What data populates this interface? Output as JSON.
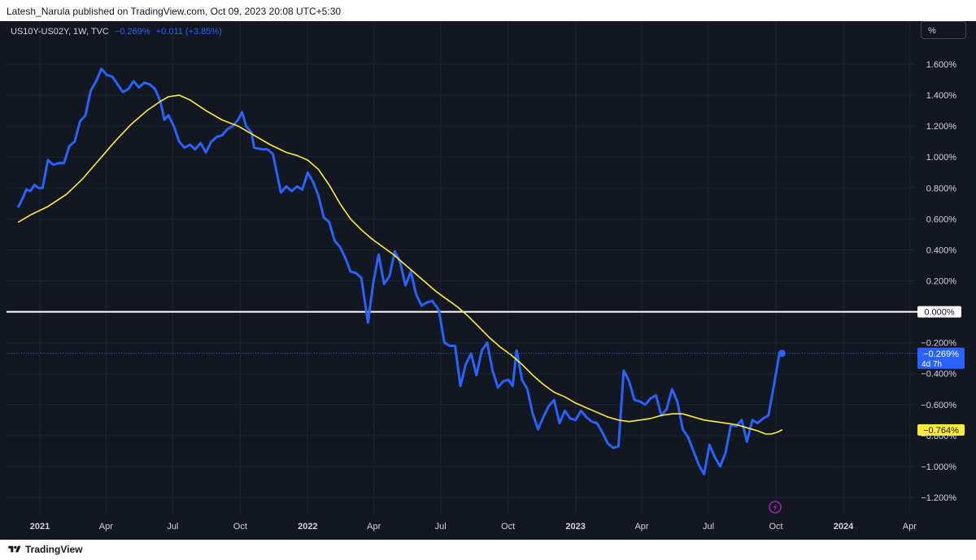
{
  "header": {
    "published_text": "Latesh_Narula published on TradingView.com, Oct 09, 2023 20:08 UTC+5:30"
  },
  "legend": {
    "symbol": "US10Y-US02Y, 1W, TVC",
    "last_value": "−0.269%",
    "change": "+0.011 (+3.85%)"
  },
  "scale_button": {
    "label": "%"
  },
  "footer": {
    "brand": "TradingView"
  },
  "colors": {
    "background": "#131722",
    "price_line": "#2962ff",
    "ma_line": "#ffeb3b",
    "zero_line": "#ffffff",
    "grid": "#1f2433"
  },
  "chart_data": {
    "type": "line",
    "title": "US10Y-US02Y, 1W, TVC",
    "ylim": [
      -1.3,
      1.75
    ],
    "y_unit": "%",
    "y_ticks": [
      1.6,
      1.4,
      1.2,
      1.0,
      0.8,
      0.6,
      0.4,
      0.2,
      -0.2,
      -0.4,
      -0.6,
      -0.8,
      -1.0,
      -1.2
    ],
    "y_tick_labels": [
      "1.600%",
      "1.400%",
      "1.200%",
      "1.000%",
      "0.800%",
      "0.600%",
      "0.400%",
      "0.200%",
      "−0.200%",
      "−0.400%",
      "−0.600%",
      "−0.800%",
      "−1.000%",
      "−1.200%"
    ],
    "x_ticks": [
      {
        "label": "2021",
        "t": 2021.0,
        "bold": true
      },
      {
        "label": "Apr",
        "t": 2021.247,
        "bold": false
      },
      {
        "label": "Jul",
        "t": 2021.496,
        "bold": false
      },
      {
        "label": "Oct",
        "t": 2021.748,
        "bold": false
      },
      {
        "label": "2022",
        "t": 2022.0,
        "bold": true
      },
      {
        "label": "Apr",
        "t": 2022.247,
        "bold": false
      },
      {
        "label": "Jul",
        "t": 2022.496,
        "bold": false
      },
      {
        "label": "Oct",
        "t": 2022.748,
        "bold": false
      },
      {
        "label": "2023",
        "t": 2023.0,
        "bold": true
      },
      {
        "label": "Apr",
        "t": 2023.247,
        "bold": false
      },
      {
        "label": "Jul",
        "t": 2023.496,
        "bold": false
      },
      {
        "label": "Oct",
        "t": 2023.748,
        "bold": false
      },
      {
        "label": "2024",
        "t": 2024.0,
        "bold": true
      },
      {
        "label": "Apr",
        "t": 2024.247,
        "bold": false
      }
    ],
    "xlim": [
      2020.92,
      2024.3
    ],
    "series": [
      {
        "name": "US10Y-US02Y",
        "color": "#2962ff",
        "points": [
          [
            2020.92,
            0.68
          ],
          [
            2020.935,
            0.73
          ],
          [
            2020.95,
            0.79
          ],
          [
            2020.965,
            0.78
          ],
          [
            2020.98,
            0.82
          ],
          [
            2020.995,
            0.8
          ],
          [
            2021.01,
            0.8
          ],
          [
            2021.03,
            0.98
          ],
          [
            2021.05,
            0.95
          ],
          [
            2021.07,
            0.96
          ],
          [
            2021.09,
            0.96
          ],
          [
            2021.11,
            1.07
          ],
          [
            2021.13,
            1.1
          ],
          [
            2021.15,
            1.23
          ],
          [
            2021.17,
            1.27
          ],
          [
            2021.19,
            1.43
          ],
          [
            2021.21,
            1.49
          ],
          [
            2021.23,
            1.57
          ],
          [
            2021.25,
            1.53
          ],
          [
            2021.27,
            1.52
          ],
          [
            2021.29,
            1.47
          ],
          [
            2021.31,
            1.42
          ],
          [
            2021.33,
            1.44
          ],
          [
            2021.35,
            1.49
          ],
          [
            2021.37,
            1.45
          ],
          [
            2021.39,
            1.48
          ],
          [
            2021.41,
            1.47
          ],
          [
            2021.43,
            1.44
          ],
          [
            2021.45,
            1.36
          ],
          [
            2021.465,
            1.24
          ],
          [
            2021.48,
            1.27
          ],
          [
            2021.5,
            1.2
          ],
          [
            2021.52,
            1.1
          ],
          [
            2021.54,
            1.06
          ],
          [
            2021.56,
            1.08
          ],
          [
            2021.58,
            1.05
          ],
          [
            2021.6,
            1.09
          ],
          [
            2021.62,
            1.03
          ],
          [
            2021.64,
            1.1
          ],
          [
            2021.66,
            1.13
          ],
          [
            2021.68,
            1.14
          ],
          [
            2021.7,
            1.18
          ],
          [
            2021.72,
            1.2
          ],
          [
            2021.74,
            1.24
          ],
          [
            2021.755,
            1.29
          ],
          [
            2021.77,
            1.2
          ],
          [
            2021.79,
            1.16
          ],
          [
            2021.8,
            1.06
          ],
          [
            2021.83,
            1.05
          ],
          [
            2021.85,
            1.05
          ],
          [
            2021.87,
            1.02
          ],
          [
            2021.9,
            0.77
          ],
          [
            2021.92,
            0.81
          ],
          [
            2021.94,
            0.78
          ],
          [
            2021.96,
            0.81
          ],
          [
            2021.98,
            0.79
          ],
          [
            2022.0,
            0.9
          ],
          [
            2022.02,
            0.84
          ],
          [
            2022.04,
            0.75
          ],
          [
            2022.06,
            0.61
          ],
          [
            2022.08,
            0.58
          ],
          [
            2022.1,
            0.46
          ],
          [
            2022.12,
            0.42
          ],
          [
            2022.14,
            0.35
          ],
          [
            2022.16,
            0.26
          ],
          [
            2022.18,
            0.25
          ],
          [
            2022.2,
            0.22
          ],
          [
            2022.225,
            -0.07
          ],
          [
            2022.245,
            0.19
          ],
          [
            2022.265,
            0.37
          ],
          [
            2022.285,
            0.18
          ],
          [
            2022.305,
            0.23
          ],
          [
            2022.325,
            0.39
          ],
          [
            2022.345,
            0.32
          ],
          [
            2022.365,
            0.17
          ],
          [
            2022.385,
            0.26
          ],
          [
            2022.405,
            0.11
          ],
          [
            2022.425,
            0.04
          ],
          [
            2022.445,
            0.06
          ],
          [
            2022.465,
            0.07
          ],
          [
            2022.49,
            0.01
          ],
          [
            2022.51,
            -0.2
          ],
          [
            2022.53,
            -0.22
          ],
          [
            2022.55,
            -0.22
          ],
          [
            2022.57,
            -0.48
          ],
          [
            2022.59,
            -0.34
          ],
          [
            2022.61,
            -0.27
          ],
          [
            2022.63,
            -0.41
          ],
          [
            2022.65,
            -0.25
          ],
          [
            2022.67,
            -0.2
          ],
          [
            2022.69,
            -0.38
          ],
          [
            2022.71,
            -0.49
          ],
          [
            2022.73,
            -0.45
          ],
          [
            2022.75,
            -0.44
          ],
          [
            2022.765,
            -0.48
          ],
          [
            2022.78,
            -0.25
          ],
          [
            2022.8,
            -0.44
          ],
          [
            2022.82,
            -0.5
          ],
          [
            2022.84,
            -0.66
          ],
          [
            2022.86,
            -0.76
          ],
          [
            2022.88,
            -0.68
          ],
          [
            2022.9,
            -0.61
          ],
          [
            2022.92,
            -0.57
          ],
          [
            2022.94,
            -0.72
          ],
          [
            2022.96,
            -0.64
          ],
          [
            2022.98,
            -0.69
          ],
          [
            2023.0,
            -0.7
          ],
          [
            2023.02,
            -0.64
          ],
          [
            2023.04,
            -0.68
          ],
          [
            2023.06,
            -0.71
          ],
          [
            2023.08,
            -0.72
          ],
          [
            2023.1,
            -0.78
          ],
          [
            2023.12,
            -0.85
          ],
          [
            2023.14,
            -0.88
          ],
          [
            2023.16,
            -0.87
          ],
          [
            2023.18,
            -0.38
          ],
          [
            2023.2,
            -0.45
          ],
          [
            2023.22,
            -0.57
          ],
          [
            2023.24,
            -0.58
          ],
          [
            2023.26,
            -0.6
          ],
          [
            2023.28,
            -0.56
          ],
          [
            2023.3,
            -0.54
          ],
          [
            2023.32,
            -0.67
          ],
          [
            2023.34,
            -0.63
          ],
          [
            2023.36,
            -0.5
          ],
          [
            2023.38,
            -0.58
          ],
          [
            2023.4,
            -0.76
          ],
          [
            2023.42,
            -0.81
          ],
          [
            2023.44,
            -0.9
          ],
          [
            2023.46,
            -0.99
          ],
          [
            2023.48,
            -1.05
          ],
          [
            2023.5,
            -0.86
          ],
          [
            2023.52,
            -0.94
          ],
          [
            2023.54,
            -1.0
          ],
          [
            2023.56,
            -0.91
          ],
          [
            2023.58,
            -0.73
          ],
          [
            2023.6,
            -0.74
          ],
          [
            2023.62,
            -0.7
          ],
          [
            2023.64,
            -0.84
          ],
          [
            2023.66,
            -0.7
          ],
          [
            2023.68,
            -0.72
          ],
          [
            2023.7,
            -0.69
          ],
          [
            2023.72,
            -0.67
          ],
          [
            2023.74,
            -0.48
          ],
          [
            2023.76,
            -0.28
          ],
          [
            2023.77,
            -0.269
          ]
        ]
      },
      {
        "name": "Moving Average",
        "color": "#ffeb3b",
        "points": [
          [
            2020.92,
            0.58
          ],
          [
            2020.97,
            0.63
          ],
          [
            2021.03,
            0.68
          ],
          [
            2021.1,
            0.76
          ],
          [
            2021.16,
            0.86
          ],
          [
            2021.22,
            0.98
          ],
          [
            2021.28,
            1.1
          ],
          [
            2021.34,
            1.21
          ],
          [
            2021.4,
            1.3
          ],
          [
            2021.45,
            1.36
          ],
          [
            2021.48,
            1.39
          ],
          [
            2021.52,
            1.4
          ],
          [
            2021.56,
            1.37
          ],
          [
            2021.62,
            1.3
          ],
          [
            2021.68,
            1.24
          ],
          [
            2021.74,
            1.2
          ],
          [
            2021.8,
            1.14
          ],
          [
            2021.86,
            1.08
          ],
          [
            2021.92,
            1.03
          ],
          [
            2021.96,
            1.01
          ],
          [
            2022.0,
            0.98
          ],
          [
            2022.04,
            0.92
          ],
          [
            2022.08,
            0.82
          ],
          [
            2022.12,
            0.7
          ],
          [
            2022.16,
            0.6
          ],
          [
            2022.2,
            0.53
          ],
          [
            2022.24,
            0.47
          ],
          [
            2022.28,
            0.42
          ],
          [
            2022.32,
            0.37
          ],
          [
            2022.36,
            0.31
          ],
          [
            2022.4,
            0.25
          ],
          [
            2022.44,
            0.19
          ],
          [
            2022.48,
            0.13
          ],
          [
            2022.52,
            0.08
          ],
          [
            2022.56,
            0.03
          ],
          [
            2022.6,
            -0.03
          ],
          [
            2022.64,
            -0.1
          ],
          [
            2022.68,
            -0.17
          ],
          [
            2022.72,
            -0.23
          ],
          [
            2022.76,
            -0.28
          ],
          [
            2022.8,
            -0.34
          ],
          [
            2022.84,
            -0.41
          ],
          [
            2022.88,
            -0.47
          ],
          [
            2022.92,
            -0.52
          ],
          [
            2022.96,
            -0.55
          ],
          [
            2023.0,
            -0.59
          ],
          [
            2023.04,
            -0.62
          ],
          [
            2023.08,
            -0.65
          ],
          [
            2023.12,
            -0.68
          ],
          [
            2023.16,
            -0.7
          ],
          [
            2023.2,
            -0.71
          ],
          [
            2023.24,
            -0.7
          ],
          [
            2023.28,
            -0.69
          ],
          [
            2023.32,
            -0.67
          ],
          [
            2023.36,
            -0.66
          ],
          [
            2023.4,
            -0.66
          ],
          [
            2023.44,
            -0.68
          ],
          [
            2023.48,
            -0.7
          ],
          [
            2023.52,
            -0.71
          ],
          [
            2023.56,
            -0.72
          ],
          [
            2023.6,
            -0.73
          ],
          [
            2023.64,
            -0.75
          ],
          [
            2023.68,
            -0.77
          ],
          [
            2023.71,
            -0.79
          ],
          [
            2023.73,
            -0.79
          ],
          [
            2023.75,
            -0.78
          ],
          [
            2023.77,
            -0.764
          ]
        ]
      }
    ],
    "zero_line": {
      "value": 0.0,
      "label": "0.000%"
    },
    "labels": {
      "last_price": {
        "value": -0.269,
        "text": "−0.269%",
        "countdown": "4d 7h"
      },
      "ma_value": {
        "value": -0.764,
        "text": "−0.764%"
      }
    }
  }
}
